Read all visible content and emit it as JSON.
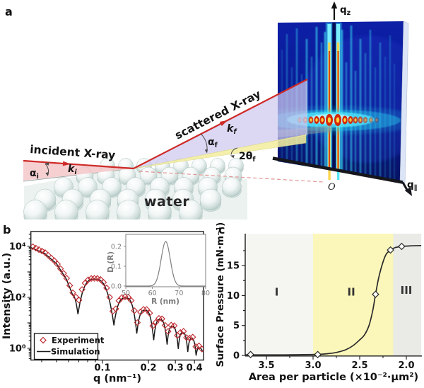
{
  "figure": {
    "background": "#ffffff"
  },
  "panel_a": {
    "label": "a",
    "incident_label": "incident X-ray",
    "scattered_label": "scattered X-ray",
    "water_label": "water",
    "alpha_i": {
      "base": "α",
      "sub": "i"
    },
    "k_i": {
      "base": "k",
      "sub": "i"
    },
    "alpha_f": {
      "base": "α",
      "sub": "f"
    },
    "k_f": {
      "base": "k",
      "sub": "f"
    },
    "two_theta_f": {
      "base": "2θ",
      "sub": "f"
    },
    "q_z": {
      "base": "q",
      "sub": "z"
    },
    "q_par": {
      "base": "q",
      "sub": "∥"
    },
    "origin_label": "O",
    "colors": {
      "beam": "#ce2a27",
      "incident_wedge": "#f4c3c5",
      "scattering_wedge": "#cfc9f0",
      "inplane_wedge": "#f3eea0",
      "detector_base": "#0b1da0",
      "detector_dark": "#071263",
      "streak_cyan": "#3ae0f6",
      "hot_red": "#d42808",
      "hot_yellow": "#ffd23c",
      "sphere_edge": "#adc3bf",
      "dashed_line": "#e49595"
    }
  },
  "chart_data": [
    {
      "id": "panel_b",
      "panel_label": "b",
      "type": "line",
      "xlabel": "q (nm⁻¹)",
      "ylabel": "Intensity (a.u.)",
      "xscale": "log",
      "yscale": "log",
      "xlim": [
        0.034,
        0.459
      ],
      "ylim": [
        0.36,
        38000
      ],
      "xticks": [
        {
          "v": 0.1,
          "label": "0.1"
        },
        {
          "v": 0.2,
          "label": "0.2"
        },
        {
          "v": 0.3,
          "label": "0.3"
        },
        {
          "v": 0.4,
          "label": "0.4"
        }
      ],
      "x_minor": [
        0.04,
        0.05,
        0.06,
        0.07,
        0.08,
        0.09
      ],
      "yticks": [
        {
          "v": 1,
          "label": "10⁰"
        },
        {
          "v": 100,
          "label": "10²"
        },
        {
          "v": 10000,
          "label": "10⁴"
        }
      ],
      "legend": {
        "position": "bottom-left",
        "entries": [
          {
            "label": "Experiment",
            "marker": "diamond",
            "color": "#bf2a30"
          },
          {
            "label": "Simulation",
            "marker": "line",
            "color": "#1a1a1a"
          }
        ]
      },
      "series": [
        {
          "name": "Simulation",
          "type": "curve",
          "color": "#1a1a1a",
          "anchors": [
            [
              0.034,
              9000,
              "pt"
            ],
            [
              0.042,
              5200,
              "pt"
            ],
            [
              0.05,
              2100,
              "pt"
            ],
            [
              0.058,
              520,
              "pt"
            ],
            [
              0.064,
              120,
              "pt"
            ],
            [
              0.0691,
              22,
              "min"
            ],
            [
              0.0886,
              520,
              "max"
            ],
            [
              0.1188,
              8,
              "min"
            ],
            [
              0.1417,
              95,
              "max"
            ],
            [
              0.1677,
              3.8,
              "min"
            ],
            [
              0.1895,
              31,
              "max"
            ],
            [
              0.2164,
              2.1,
              "min"
            ],
            [
              0.2377,
              13.5,
              "max"
            ],
            [
              0.2649,
              1.4,
              "min"
            ],
            [
              0.2862,
              7.2,
              "max"
            ],
            [
              0.3134,
              0.95,
              "min"
            ],
            [
              0.3346,
              4.1,
              "max"
            ],
            [
              0.3618,
              0.72,
              "min"
            ],
            [
              0.3831,
              2.4,
              "max"
            ],
            [
              0.4102,
              0.52,
              "min"
            ],
            [
              0.432,
              1.05,
              "max"
            ],
            [
              0.452,
              0.75,
              "pt"
            ]
          ]
        },
        {
          "name": "Experiment",
          "type": "scatter",
          "color": "#bf2a30",
          "marker": "diamond",
          "n_points": 56,
          "q_range": [
            0.035,
            0.448
          ],
          "anchors": [
            [
              0.034,
              10500,
              "pt"
            ],
            [
              0.042,
              5800,
              "pt"
            ],
            [
              0.05,
              2300,
              "pt"
            ],
            [
              0.058,
              600,
              "pt"
            ],
            [
              0.064,
              150,
              "pt"
            ],
            [
              0.0691,
              52,
              "min"
            ],
            [
              0.0886,
              560,
              "max"
            ],
            [
              0.1188,
              16,
              "min"
            ],
            [
              0.1417,
              105,
              "max"
            ],
            [
              0.1677,
              7.5,
              "min"
            ],
            [
              0.1895,
              34,
              "max"
            ],
            [
              0.2164,
              4.2,
              "min"
            ],
            [
              0.2377,
              15,
              "max"
            ],
            [
              0.2649,
              2.7,
              "min"
            ],
            [
              0.2862,
              8.2,
              "max"
            ],
            [
              0.3134,
              1.8,
              "min"
            ],
            [
              0.3346,
              4.7,
              "max"
            ],
            [
              0.3618,
              1.3,
              "min"
            ],
            [
              0.3831,
              2.8,
              "max"
            ],
            [
              0.4102,
              0.95,
              "min"
            ],
            [
              0.432,
              1.25,
              "max"
            ],
            [
              0.452,
              0.8,
              "pt"
            ]
          ]
        }
      ],
      "inset": {
        "xlabel": "R (nm)",
        "ylabel": "D (R)",
        "xlim": [
          50,
          80
        ],
        "ylim": [
          0,
          0.257
        ],
        "xticks": [
          {
            "v": 50,
            "label": "50"
          },
          {
            "v": 60,
            "label": "60"
          },
          {
            "v": 70,
            "label": "70"
          },
          {
            "v": 80,
            "label": "80"
          }
        ],
        "yticks": [
          {
            "v": 0,
            "label": "0.0"
          },
          {
            "v": 0.1,
            "label": "0.1"
          },
          {
            "v": 0.2,
            "label": "0.2"
          }
        ],
        "peak": {
          "center": 65,
          "sigma": 1.7,
          "amplitude": 0.225
        },
        "color": "#808080"
      }
    },
    {
      "id": "panel_c",
      "panel_label": "c",
      "type": "line",
      "xlabel": "Area per particle (×10⁻²·μm²)",
      "ylabel": "Surface Pressure (mN·m⁻¹)",
      "x_reversed": true,
      "xlim": [
        3.73,
        1.84
      ],
      "ylim": [
        0,
        20.3
      ],
      "xticks": [
        {
          "v": 3.5,
          "label": "3.5"
        },
        {
          "v": 3.0,
          "label": "3.0"
        },
        {
          "v": 2.5,
          "label": "2.5"
        },
        {
          "v": 2.0,
          "label": "2.0"
        }
      ],
      "x_minor": [
        3.25,
        2.75,
        2.25
      ],
      "yticks": [
        {
          "v": 0,
          "label": "0"
        },
        {
          "v": 5,
          "label": "5"
        },
        {
          "v": 10,
          "label": "10"
        },
        {
          "v": 15,
          "label": "15"
        }
      ],
      "y_minor": [
        2.5,
        7.5,
        12.5,
        17.5
      ],
      "regions": [
        {
          "label": "I",
          "from": 3.73,
          "to": 3.0,
          "color": "#f5f5f2",
          "label_x": 3.39,
          "label_y": 10.6
        },
        {
          "label": "II",
          "from": 3.0,
          "to": 2.14,
          "color": "#fbf7ba",
          "label_x": 2.59,
          "label_y": 10.6
        },
        {
          "label": "III",
          "from": 2.14,
          "to": 1.84,
          "color": "#eaeae7",
          "label_x": 2.0,
          "label_y": 10.9
        }
      ],
      "curve": {
        "color": "#2a2a2a",
        "points": [
          [
            3.73,
            0.1
          ],
          [
            3.5,
            0.1
          ],
          [
            3.3,
            0.1
          ],
          [
            3.1,
            0.13
          ],
          [
            2.95,
            0.18
          ],
          [
            2.85,
            0.28
          ],
          [
            2.75,
            0.5
          ],
          [
            2.65,
            0.95
          ],
          [
            2.57,
            1.65
          ],
          [
            2.5,
            2.6
          ],
          [
            2.45,
            3.4
          ],
          [
            2.4,
            5.0
          ],
          [
            2.36,
            7.5
          ],
          [
            2.33,
            10.2
          ],
          [
            2.3,
            12.7
          ],
          [
            2.26,
            15.1
          ],
          [
            2.22,
            16.8
          ],
          [
            2.17,
            17.6
          ],
          [
            2.12,
            18.0
          ],
          [
            2.05,
            18.2
          ],
          [
            1.95,
            18.3
          ],
          [
            1.84,
            18.35
          ]
        ]
      },
      "markers": {
        "shape": "diamond",
        "fill": "#ffffff",
        "stroke": "#2a2a2a",
        "points": [
          [
            3.67,
            0.15
          ],
          [
            2.95,
            0.15
          ],
          [
            2.33,
            10.2
          ],
          [
            2.17,
            17.6
          ],
          [
            2.05,
            18.2
          ]
        ]
      }
    }
  ]
}
